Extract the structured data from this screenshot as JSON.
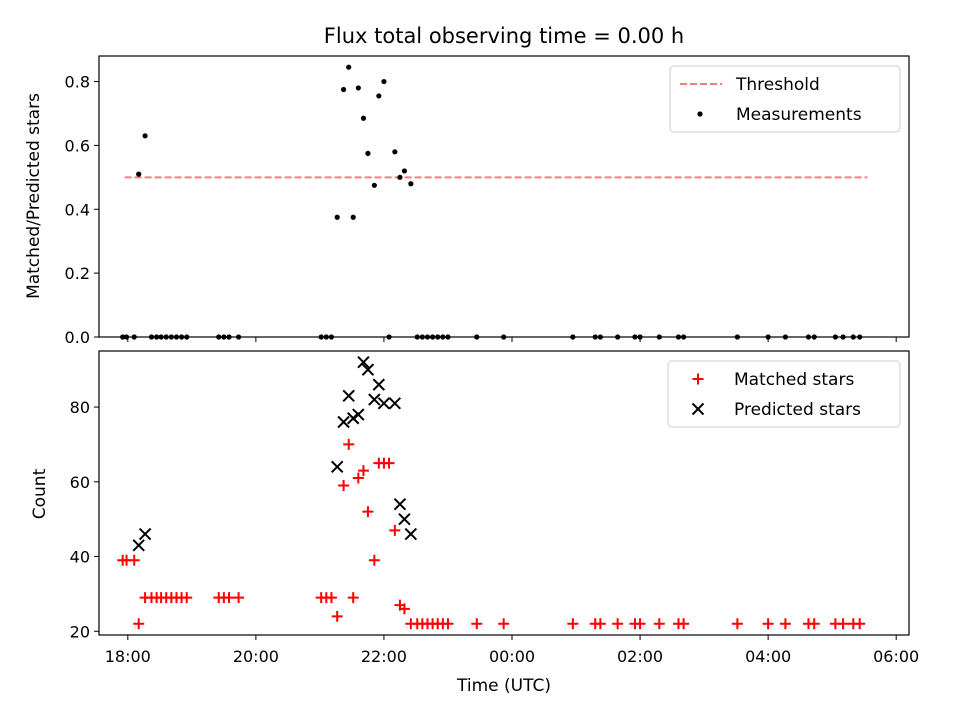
{
  "chart_data": [
    {
      "type": "scatter",
      "title": "Flux total observing time = 0.00 h",
      "xlabel": "",
      "ylabel": "Matched/Predicted stars",
      "xlim": [
        17.55,
        30.2
      ],
      "ylim": [
        0,
        0.88
      ],
      "yticks": [
        0.0,
        0.2,
        0.4,
        0.6,
        0.8
      ],
      "ytick_labels": [
        "0.0",
        "0.2",
        "0.4",
        "0.6",
        "0.8"
      ],
      "legend_position": "top-right",
      "threshold": {
        "name": "Threshold",
        "y": 0.5,
        "x_range": [
          17.95,
          29.55
        ],
        "color": "#f08080"
      },
      "series": [
        {
          "name": "Measurements",
          "color": "#000000",
          "marker": "dot",
          "points": [
            [
              17.92,
              0
            ],
            [
              17.98,
              0
            ],
            [
              18.1,
              0
            ],
            [
              18.17,
              0.51
            ],
            [
              18.27,
              0.63
            ],
            [
              18.37,
              0
            ],
            [
              18.45,
              0
            ],
            [
              18.52,
              0
            ],
            [
              18.6,
              0
            ],
            [
              18.68,
              0
            ],
            [
              18.76,
              0
            ],
            [
              18.84,
              0
            ],
            [
              18.92,
              0
            ],
            [
              19.42,
              0
            ],
            [
              19.5,
              0
            ],
            [
              19.58,
              0
            ],
            [
              19.73,
              0
            ],
            [
              21.02,
              0
            ],
            [
              21.1,
              0
            ],
            [
              21.18,
              0
            ],
            [
              21.27,
              0.375
            ],
            [
              21.37,
              0.775
            ],
            [
              21.45,
              0.845
            ],
            [
              21.52,
              0.375
            ],
            [
              21.6,
              0.78
            ],
            [
              21.68,
              0.685
            ],
            [
              21.75,
              0.575
            ],
            [
              21.85,
              0.475
            ],
            [
              21.92,
              0.755
            ],
            [
              22.0,
              0.8
            ],
            [
              22.08,
              0
            ],
            [
              22.17,
              0.58
            ],
            [
              22.25,
              0.5
            ],
            [
              22.32,
              0.52
            ],
            [
              22.42,
              0.48
            ],
            [
              22.52,
              0
            ],
            [
              22.6,
              0
            ],
            [
              22.68,
              0
            ],
            [
              22.76,
              0
            ],
            [
              22.84,
              0
            ],
            [
              22.92,
              0
            ],
            [
              23.0,
              0
            ],
            [
              23.45,
              0
            ],
            [
              23.87,
              0
            ],
            [
              24.95,
              0
            ],
            [
              25.3,
              0
            ],
            [
              25.38,
              0
            ],
            [
              25.65,
              0
            ],
            [
              25.92,
              0
            ],
            [
              26.0,
              0
            ],
            [
              26.3,
              0
            ],
            [
              26.6,
              0
            ],
            [
              26.68,
              0
            ],
            [
              27.52,
              0
            ],
            [
              28.0,
              0
            ],
            [
              28.27,
              0
            ],
            [
              28.63,
              0
            ],
            [
              28.72,
              0
            ],
            [
              29.05,
              0
            ],
            [
              29.17,
              0
            ],
            [
              29.33,
              0
            ],
            [
              29.43,
              0
            ]
          ]
        }
      ]
    },
    {
      "type": "scatter",
      "title": "",
      "xlabel": "Time (UTC)",
      "ylabel": "Count",
      "xlim": [
        17.55,
        30.2
      ],
      "ylim": [
        19,
        95
      ],
      "yticks": [
        20,
        40,
        60,
        80
      ],
      "ytick_labels": [
        "20",
        "40",
        "60",
        "80"
      ],
      "xticks": [
        18,
        20,
        22,
        24,
        26,
        28,
        30
      ],
      "xtick_labels": [
        "18:00",
        "20:00",
        "22:00",
        "00:00",
        "02:00",
        "04:00",
        "06:00"
      ],
      "legend_position": "top-right",
      "series": [
        {
          "name": "Matched stars",
          "color": "#ff0000",
          "marker": "plus",
          "points": [
            [
              17.92,
              39
            ],
            [
              17.98,
              39
            ],
            [
              18.1,
              39
            ],
            [
              18.17,
              22
            ],
            [
              18.27,
              29
            ],
            [
              18.37,
              29
            ],
            [
              18.45,
              29
            ],
            [
              18.52,
              29
            ],
            [
              18.6,
              29
            ],
            [
              18.68,
              29
            ],
            [
              18.76,
              29
            ],
            [
              18.84,
              29
            ],
            [
              18.92,
              29
            ],
            [
              19.42,
              29
            ],
            [
              19.5,
              29
            ],
            [
              19.58,
              29
            ],
            [
              19.73,
              29
            ],
            [
              21.02,
              29
            ],
            [
              21.1,
              29
            ],
            [
              21.18,
              29
            ],
            [
              21.27,
              24
            ],
            [
              21.37,
              59
            ],
            [
              21.45,
              70
            ],
            [
              21.52,
              29
            ],
            [
              21.6,
              61
            ],
            [
              21.68,
              63
            ],
            [
              21.75,
              52
            ],
            [
              21.85,
              39
            ],
            [
              21.92,
              65
            ],
            [
              22.0,
              65
            ],
            [
              22.08,
              65
            ],
            [
              22.17,
              47
            ],
            [
              22.25,
              27
            ],
            [
              22.32,
              26
            ],
            [
              22.42,
              22
            ],
            [
              22.52,
              22
            ],
            [
              22.6,
              22
            ],
            [
              22.68,
              22
            ],
            [
              22.76,
              22
            ],
            [
              22.84,
              22
            ],
            [
              22.92,
              22
            ],
            [
              23.0,
              22
            ],
            [
              23.45,
              22
            ],
            [
              23.87,
              22
            ],
            [
              24.95,
              22
            ],
            [
              25.3,
              22
            ],
            [
              25.38,
              22
            ],
            [
              25.65,
              22
            ],
            [
              25.92,
              22
            ],
            [
              26.0,
              22
            ],
            [
              26.3,
              22
            ],
            [
              26.6,
              22
            ],
            [
              26.68,
              22
            ],
            [
              27.52,
              22
            ],
            [
              28.0,
              22
            ],
            [
              28.27,
              22
            ],
            [
              28.63,
              22
            ],
            [
              28.72,
              22
            ],
            [
              29.05,
              22
            ],
            [
              29.17,
              22
            ],
            [
              29.33,
              22
            ],
            [
              29.43,
              22
            ]
          ]
        },
        {
          "name": "Predicted stars",
          "color": "#000000",
          "marker": "x",
          "points": [
            [
              18.17,
              43
            ],
            [
              18.27,
              46
            ],
            [
              21.27,
              64
            ],
            [
              21.37,
              76
            ],
            [
              21.45,
              83
            ],
            [
              21.52,
              77
            ],
            [
              21.6,
              78
            ],
            [
              21.68,
              92
            ],
            [
              21.75,
              90
            ],
            [
              21.85,
              82
            ],
            [
              21.92,
              86
            ],
            [
              22.0,
              81
            ],
            [
              22.17,
              81
            ],
            [
              22.25,
              54
            ],
            [
              22.32,
              50
            ],
            [
              22.42,
              46
            ]
          ]
        }
      ]
    }
  ]
}
